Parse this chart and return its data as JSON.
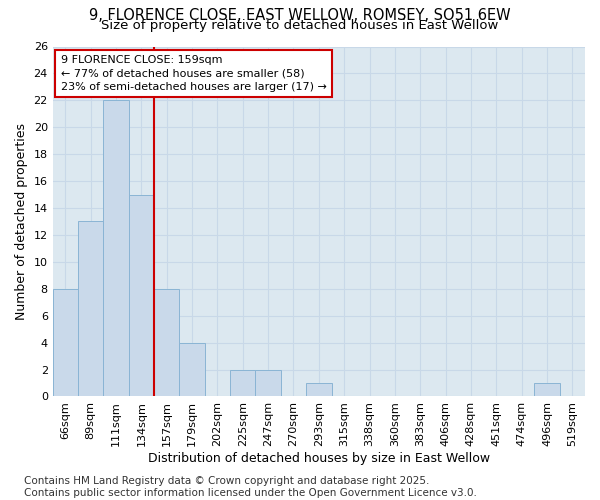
{
  "title_line1": "9, FLORENCE CLOSE, EAST WELLOW, ROMSEY, SO51 6EW",
  "title_line2": "Size of property relative to detached houses in East Wellow",
  "xlabel": "Distribution of detached houses by size in East Wellow",
  "ylabel": "Number of detached properties",
  "categories": [
    "66sqm",
    "89sqm",
    "111sqm",
    "134sqm",
    "157sqm",
    "179sqm",
    "202sqm",
    "225sqm",
    "247sqm",
    "270sqm",
    "293sqm",
    "315sqm",
    "338sqm",
    "360sqm",
    "383sqm",
    "406sqm",
    "428sqm",
    "451sqm",
    "474sqm",
    "496sqm",
    "519sqm"
  ],
  "values": [
    8,
    13,
    22,
    15,
    8,
    4,
    0,
    2,
    2,
    0,
    1,
    0,
    0,
    0,
    0,
    0,
    0,
    0,
    0,
    1,
    0
  ],
  "bar_color": "#c9d9ea",
  "bar_edge_color": "#8ab4d4",
  "vline_x": 3.5,
  "vline_color": "#cc0000",
  "annotation_text": "9 FLORENCE CLOSE: 159sqm\n← 77% of detached houses are smaller (58)\n23% of semi-detached houses are larger (17) →",
  "annotation_box_color": "#ffffff",
  "annotation_box_edge": "#cc0000",
  "ylim": [
    0,
    26
  ],
  "yticks": [
    0,
    2,
    4,
    6,
    8,
    10,
    12,
    14,
    16,
    18,
    20,
    22,
    24,
    26
  ],
  "grid_color": "#c8d8e8",
  "bg_color": "#dce8f0",
  "footer_text": "Contains HM Land Registry data © Crown copyright and database right 2025.\nContains public sector information licensed under the Open Government Licence v3.0.",
  "title_fontsize": 10.5,
  "subtitle_fontsize": 9.5,
  "label_fontsize": 9,
  "tick_fontsize": 8,
  "annot_fontsize": 8,
  "footer_fontsize": 7.5
}
